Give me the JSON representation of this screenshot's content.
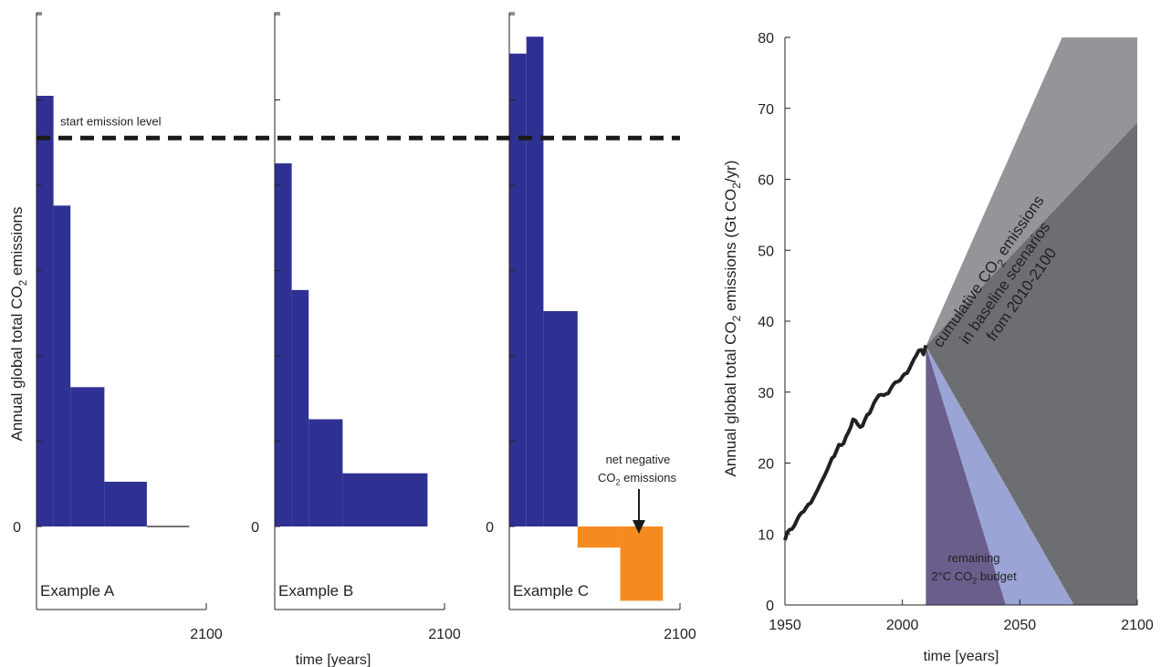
{
  "colors": {
    "bar": "#2e3192",
    "negative": "#f58a1f",
    "axis": "#231f20",
    "history_line": "#231f20",
    "baseline_light": "#939598",
    "baseline_dark": "#6d6e71",
    "budget_light": "#9aa5d6",
    "budget_dark": "#6a5e8c",
    "region_text": "#ffffff"
  },
  "left_panels": {
    "ylabel_prefix": "Annual global total CO",
    "ylabel_sub": "2",
    "ylabel_suffix": " emissions",
    "xlabel": "time [years]",
    "zero_label": "0",
    "end_label": "2100",
    "start_line_label": "start emission level",
    "negative_label_line1": "net negative",
    "negative_label_line2_prefix": "CO",
    "negative_label_line2_sub": "2",
    "negative_label_line2_suffix": "  emissions"
  },
  "chart_data": [
    {
      "type": "bar",
      "panel": "Example A",
      "title": "Example A",
      "xlabel": "",
      "ylabel": "Annual global total CO2 emissions",
      "start_emission_level": 4.6,
      "ylim": [
        -0.9,
        6.0
      ],
      "x_end_label": "2100",
      "bars": [
        {
          "x0": 0.0,
          "x1": 0.1,
          "value": 5.1
        },
        {
          "x0": 0.1,
          "x1": 0.2,
          "value": 3.8
        },
        {
          "x0": 0.2,
          "x1": 0.4,
          "value": 1.65
        },
        {
          "x0": 0.4,
          "x1": 0.65,
          "value": 0.53
        },
        {
          "x0": 0.65,
          "x1": 0.9,
          "value": 0.0
        }
      ]
    },
    {
      "type": "bar",
      "panel": "Example B",
      "title": "Example B",
      "xlabel": "time [years]",
      "ylabel": "",
      "start_emission_level": 4.6,
      "ylim": [
        -0.9,
        6.0
      ],
      "x_end_label": "2100",
      "bars": [
        {
          "x0": 0.0,
          "x1": 0.1,
          "value": 4.3
        },
        {
          "x0": 0.1,
          "x1": 0.2,
          "value": 2.8
        },
        {
          "x0": 0.2,
          "x1": 0.4,
          "value": 1.27
        },
        {
          "x0": 0.4,
          "x1": 0.9,
          "value": 0.63
        }
      ]
    },
    {
      "type": "bar",
      "panel": "Example C",
      "title": "Example C",
      "xlabel": "",
      "ylabel": "",
      "start_emission_level": 4.6,
      "ylim": [
        -0.9,
        6.0
      ],
      "x_end_label": "2100",
      "bars": [
        {
          "x0": 0.0,
          "x1": 0.1,
          "value": 5.6
        },
        {
          "x0": 0.1,
          "x1": 0.2,
          "value": 5.8
        },
        {
          "x0": 0.2,
          "x1": 0.4,
          "value": 2.55
        },
        {
          "x0": 0.4,
          "x1": 0.65,
          "value": -0.25
        },
        {
          "x0": 0.65,
          "x1": 0.9,
          "value": -0.88
        }
      ],
      "annotation": "net negative CO2 emissions"
    },
    {
      "type": "line",
      "panel": "right",
      "xlabel": "time [years]",
      "ylabel": "Annual global total CO2 emissions (Gt CO2/yr)",
      "xlim": [
        1950,
        2100
      ],
      "ylim": [
        0,
        80
      ],
      "xticks": [
        1950,
        2000,
        2050,
        2100
      ],
      "yticks": [
        0,
        10,
        20,
        30,
        40,
        50,
        60,
        70,
        80
      ],
      "series": [
        {
          "name": "",
          "x": [
            1950,
            1951,
            1952,
            1953,
            1954,
            1955,
            1956,
            1957,
            1958,
            1959,
            1960,
            1961,
            1962,
            1963,
            1964,
            1965,
            1966,
            1967,
            1968,
            1969,
            1970,
            1971,
            1972,
            1973,
            1974,
            1975,
            1976,
            1977,
            1978,
            1979,
            1980,
            1981,
            1982,
            1983,
            1984,
            1985,
            1986,
            1987,
            1988,
            1989,
            1990,
            1991,
            1992,
            1993,
            1994,
            1995,
            1996,
            1997,
            1998,
            1999,
            2000,
            2001,
            2002,
            2003,
            2004,
            2005,
            2006,
            2007,
            2008,
            2009,
            2010
          ],
          "y": [
            10.0,
            11.2,
            11.6,
            11.7,
            12.2,
            13.0,
            13.7,
            14.2,
            14.4,
            15.0,
            15.5,
            15.7,
            16.4,
            17.1,
            17.8,
            18.6,
            19.3,
            20.0,
            20.8,
            21.7,
            22.6,
            22.9,
            23.8,
            24.7,
            24.6,
            24.9,
            25.9,
            26.6,
            27.4,
            28.6,
            28.4,
            27.8,
            27.4,
            27.6,
            28.5,
            29.3,
            29.5,
            30.3,
            31.2,
            31.8,
            32.3,
            32.4,
            32.3,
            32.5,
            32.6,
            33.3,
            33.9,
            34.3,
            34.4,
            34.6,
            35.2,
            35.6,
            35.7,
            36.4,
            37.2,
            37.9,
            38.5,
            39.2,
            39.3,
            38.6,
            40.0
          ],
          "_note": ""
        }
      ],
      "regions": [
        {
          "name": "baseline_upper",
          "x": [
            2010,
            2068,
            2100,
            2100
          ],
          "y": [
            36.5,
            80,
            80,
            68
          ]
        },
        {
          "name": "baseline_lower",
          "x": [
            2010,
            2100,
            2100,
            2073
          ],
          "y": [
            36.5,
            68,
            0,
            0
          ]
        },
        {
          "name": "budget_upper",
          "x": [
            2010,
            2073,
            2044
          ],
          "y": [
            36.5,
            0,
            0
          ]
        },
        {
          "name": "budget_lower",
          "x": [
            2010,
            2044,
            2010
          ],
          "y": [
            36.5,
            0,
            0
          ]
        }
      ],
      "annotations": {
        "baseline_line1_prefix": "cumulative CO",
        "baseline_line1_sub": "2",
        "baseline_line1_suffix": " emissions",
        "baseline_line2": "in baseline scenarios",
        "baseline_line3": "from 2010-2100",
        "budget_line1": "remaining",
        "budget_line2_prefix": "2°C CO",
        "budget_line2_sub": "2",
        "budget_line2_suffix": "  budget"
      }
    }
  ]
}
